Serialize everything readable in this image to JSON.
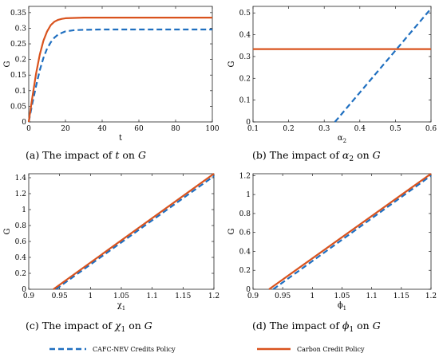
{
  "chart_data": [
    {
      "type": "line",
      "caption": "(a)  The impact of t on G",
      "xlabel": "t",
      "ylabel": "G",
      "xlim": [
        0,
        100
      ],
      "ylim": [
        0,
        0.37
      ],
      "xticks": [
        0,
        20,
        40,
        60,
        80,
        100
      ],
      "xtick_labels": [
        "0",
        "20",
        "40",
        "60",
        "80",
        "100"
      ],
      "yticks": [
        0,
        0.05,
        0.1,
        0.15,
        0.2,
        0.25,
        0.3,
        0.35
      ],
      "ytick_labels": [
        "0",
        "0.05",
        "0.1",
        "0.15",
        "0.2",
        "0.25",
        "0.3",
        "0.35"
      ],
      "series": [
        {
          "name": "CAFC-NEV Credits Policy",
          "x": [
            0,
            2,
            4,
            6,
            8,
            10,
            12,
            14,
            16,
            18,
            20,
            25,
            30,
            40,
            60,
            80,
            100
          ],
          "y": [
            0,
            0.06,
            0.115,
            0.165,
            0.205,
            0.235,
            0.255,
            0.27,
            0.28,
            0.285,
            0.29,
            0.294,
            0.295,
            0.296,
            0.296,
            0.296,
            0.296
          ]
        },
        {
          "name": "Carbon Credit Policy",
          "x": [
            0,
            2,
            4,
            6,
            8,
            10,
            12,
            14,
            16,
            18,
            20,
            25,
            30,
            40,
            60,
            80,
            100
          ],
          "y": [
            0,
            0.08,
            0.155,
            0.215,
            0.26,
            0.29,
            0.31,
            0.321,
            0.327,
            0.33,
            0.332,
            0.333,
            0.334,
            0.334,
            0.334,
            0.334,
            0.334
          ]
        }
      ]
    },
    {
      "type": "line",
      "caption": "(b)  The impact of α2 on G",
      "xlabel": "α2",
      "ylabel": "G",
      "xlim": [
        0.1,
        0.6
      ],
      "ylim": [
        0,
        0.53
      ],
      "xticks": [
        0.1,
        0.2,
        0.3,
        0.4,
        0.5,
        0.6
      ],
      "xtick_labels": [
        "0.1",
        "0.2",
        "0.3",
        "0.4",
        "0.5",
        "0.6"
      ],
      "yticks": [
        0,
        0.1,
        0.2,
        0.3,
        0.4,
        0.5
      ],
      "ytick_labels": [
        "0",
        "0.1",
        "0.2",
        "0.3",
        "0.4",
        "0.5"
      ],
      "series": [
        {
          "name": "CAFC-NEV Credits Policy",
          "x": [
            0.33,
            0.6
          ],
          "y": [
            0,
            0.52
          ]
        },
        {
          "name": "Carbon Credit Policy",
          "x": [
            0.1,
            0.6
          ],
          "y": [
            0.334,
            0.334
          ]
        }
      ]
    },
    {
      "type": "line",
      "caption": "(c)  The impact of χ1 on G",
      "xlabel": "χ1",
      "ylabel": "G",
      "xlim": [
        0.9,
        1.2
      ],
      "ylim": [
        0,
        1.45
      ],
      "xticks": [
        0.9,
        0.95,
        1,
        1.05,
        1.1,
        1.15,
        1.2
      ],
      "xtick_labels": [
        "0.9",
        "0.95",
        "1",
        "1.05",
        "1.1",
        "1.15",
        "1.2"
      ],
      "yticks": [
        0,
        0.2,
        0.4,
        0.6,
        0.8,
        1,
        1.2,
        1.4
      ],
      "ytick_labels": [
        "0",
        "0.2",
        "0.4",
        "0.6",
        "0.8",
        "1",
        "1.2",
        "1.4"
      ],
      "series": [
        {
          "name": "CAFC-NEV Credits Policy",
          "x": [
            0.944,
            1.2
          ],
          "y": [
            0,
            1.42
          ]
        },
        {
          "name": "Carbon Credit Policy",
          "x": [
            0.94,
            1.2
          ],
          "y": [
            0,
            1.45
          ]
        }
      ]
    },
    {
      "type": "line",
      "caption": "(d)  The impact of ϕ1 on G",
      "xlabel": "ϕ1",
      "ylabel": "G",
      "xlim": [
        0.9,
        1.2
      ],
      "ylim": [
        0,
        1.22
      ],
      "xticks": [
        0.9,
        0.95,
        1,
        1.05,
        1.1,
        1.15,
        1.2
      ],
      "xtick_labels": [
        "0.9",
        "0.95",
        "1",
        "1.05",
        "1.1",
        "1.15",
        "1.2"
      ],
      "yticks": [
        0,
        0.2,
        0.4,
        0.6,
        0.8,
        1,
        1.2
      ],
      "ytick_labels": [
        "0",
        "0.2",
        "0.4",
        "0.6",
        "0.8",
        "1",
        "1.2"
      ],
      "series": [
        {
          "name": "CAFC-NEV Credits Policy",
          "x": [
            0.934,
            1.2
          ],
          "y": [
            0,
            1.2
          ]
        },
        {
          "name": "Carbon Credit Policy",
          "x": [
            0.927,
            1.2
          ],
          "y": [
            0,
            1.22
          ]
        }
      ]
    }
  ],
  "legend": {
    "position": "bottom",
    "items": [
      {
        "label": "CAFC-NEV Credits Policy",
        "style": "dashed",
        "color": "#1f6fc0"
      },
      {
        "label": "Carbon Credit Policy",
        "style": "solid",
        "color": "#d9531e"
      }
    ]
  },
  "colors": {
    "cafc": "#1f6fc0",
    "carbon": "#d9531e"
  }
}
